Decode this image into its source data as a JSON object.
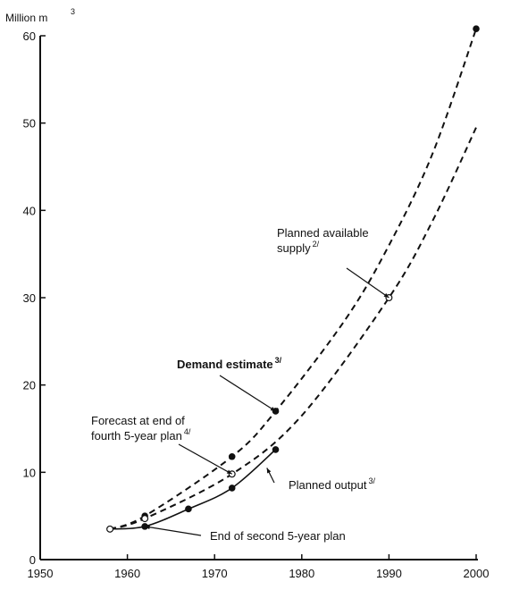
{
  "chart_data": {
    "type": "line",
    "title": "",
    "xlabel": "",
    "ylabel": "Million m",
    "ylabel_superscript": "3",
    "xlim": [
      1950,
      2000
    ],
    "ylim": [
      0,
      60
    ],
    "x_ticks": [
      1950,
      1960,
      1970,
      1980,
      1990,
      2000
    ],
    "y_ticks": [
      0,
      10,
      20,
      30,
      40,
      50,
      60
    ],
    "grid": false,
    "series": [
      {
        "name": "Demand estimate",
        "style": "dashed",
        "x": [
          1958,
          1962,
          1972,
          1977,
          1985,
          1990,
          1995,
          2000
        ],
        "y": [
          3.5,
          5.0,
          11.8,
          17.0,
          27.5,
          36.0,
          46.5,
          60.8
        ]
      },
      {
        "name": "Planned available supply",
        "style": "dashed",
        "x": [
          1958,
          1962,
          1972,
          1980,
          1990,
          1995,
          2000
        ],
        "y": [
          3.5,
          4.7,
          9.8,
          16.5,
          30.0,
          38.8,
          49.5
        ]
      },
      {
        "name": "Planned output",
        "style": "solid",
        "x": [
          1958,
          1962,
          1967,
          1972,
          1977
        ],
        "y": [
          3.5,
          3.8,
          5.8,
          8.2,
          12.6
        ]
      }
    ],
    "markers": [
      {
        "x": 1958,
        "y": 3.5,
        "filled": false
      },
      {
        "x": 1962,
        "y": 5.0,
        "filled": true
      },
      {
        "x": 1962,
        "y": 4.7,
        "filled": false
      },
      {
        "x": 1962,
        "y": 3.8,
        "filled": true
      },
      {
        "x": 1967,
        "y": 5.8,
        "filled": true
      },
      {
        "x": 1972,
        "y": 11.8,
        "filled": true
      },
      {
        "x": 1972,
        "y": 9.8,
        "filled": false
      },
      {
        "x": 1972,
        "y": 8.2,
        "filled": true
      },
      {
        "x": 1977,
        "y": 17.0,
        "filled": true
      },
      {
        "x": 1977,
        "y": 12.6,
        "filled": true
      },
      {
        "x": 1990,
        "y": 30.0,
        "filled": false
      },
      {
        "x": 2000,
        "y": 60.8,
        "filled": true
      }
    ],
    "annotations": [
      {
        "lines": [
          "Planned available",
          "supply"
        ],
        "footnote": "2/",
        "bold": false,
        "point": {
          "x": 1990,
          "y": 30.0
        }
      },
      {
        "lines": [
          "Demand estimate"
        ],
        "footnote": "3/",
        "bold": true,
        "point": {
          "x": 1977,
          "y": 17.0
        }
      },
      {
        "lines": [
          "Forecast at end of",
          "fourth 5-year plan"
        ],
        "footnote": "4/",
        "bold": false,
        "point": {
          "x": 1972,
          "y": 9.8
        }
      },
      {
        "lines": [
          "Planned output"
        ],
        "footnote": "3/",
        "bold": false,
        "point": {
          "x": 1976,
          "y": 10.5
        }
      },
      {
        "lines": [
          "End of second 5-year plan"
        ],
        "footnote": "",
        "bold": false,
        "point": {
          "x": 1962,
          "y": 3.8
        }
      }
    ]
  }
}
